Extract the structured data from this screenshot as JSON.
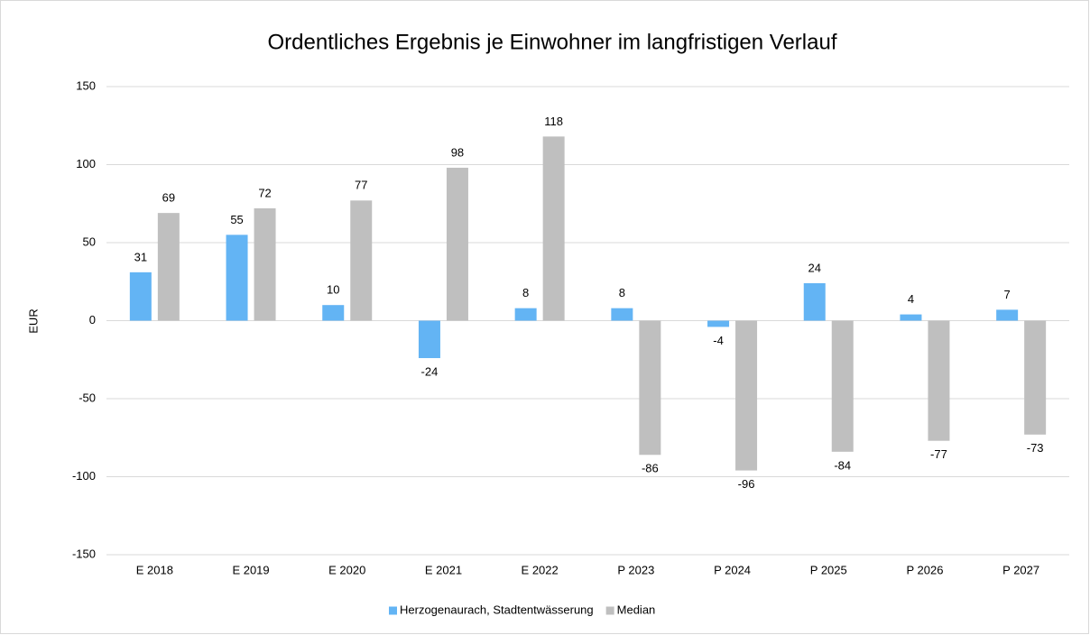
{
  "chart_data": {
    "type": "bar",
    "title": "Ordentliches Ergebnis je Einwohner im langfristigen Verlauf",
    "y_label": "EUR",
    "categories": [
      "E 2018",
      "E 2019",
      "E 2020",
      "E 2021",
      "E 2022",
      "P 2023",
      "P 2024",
      "P 2025",
      "P 2026",
      "P 2027"
    ],
    "series": [
      {
        "name": "Herzogenaurach, Stadtentwässerung",
        "color": "#63b4f4",
        "values": [
          31,
          55,
          10,
          -24,
          8,
          8,
          -4,
          24,
          4,
          7
        ]
      },
      {
        "name": "Median",
        "color": "#bfbfbf",
        "values": [
          69,
          72,
          77,
          98,
          118,
          -86,
          -96,
          -84,
          -77,
          -73
        ]
      }
    ],
    "ylim": [
      -150,
      150
    ],
    "yticks": [
      -150,
      -100,
      -50,
      0,
      50,
      100,
      150
    ],
    "grid": true,
    "legend": "bottom"
  }
}
